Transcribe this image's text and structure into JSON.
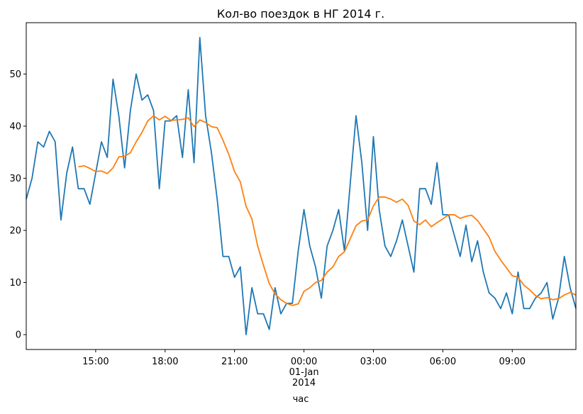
{
  "chart_data": {
    "type": "line",
    "title": "Кол-во поездок в НГ 2014 г.",
    "x_label": "час",
    "x": [
      "12:00",
      "12:15",
      "12:30",
      "12:45",
      "13:00",
      "13:15",
      "13:30",
      "13:45",
      "14:00",
      "14:15",
      "14:30",
      "14:45",
      "15:00",
      "15:15",
      "15:30",
      "15:45",
      "16:00",
      "16:15",
      "16:30",
      "16:45",
      "17:00",
      "17:15",
      "17:30",
      "17:45",
      "18:00",
      "18:15",
      "18:30",
      "18:45",
      "19:00",
      "19:15",
      "19:30",
      "19:45",
      "20:00",
      "20:15",
      "20:30",
      "20:45",
      "21:00",
      "21:15",
      "21:30",
      "21:45",
      "22:00",
      "22:15",
      "22:30",
      "22:45",
      "23:00",
      "23:15",
      "23:30",
      "23:45",
      "00:00",
      "00:15",
      "00:30",
      "00:45",
      "01:00",
      "01:15",
      "01:30",
      "01:45",
      "02:00",
      "02:15",
      "02:30",
      "02:45",
      "03:00",
      "03:15",
      "03:30",
      "03:45",
      "04:00",
      "04:15",
      "04:30",
      "04:45",
      "05:00",
      "05:15",
      "05:30",
      "05:45",
      "06:00",
      "06:15",
      "06:30",
      "06:45",
      "07:00",
      "07:15",
      "07:30",
      "07:45",
      "08:00",
      "08:15",
      "08:30",
      "08:45",
      "09:00",
      "09:15",
      "09:30",
      "09:45",
      "10:00",
      "10:15",
      "10:30",
      "10:45",
      "11:00",
      "11:15",
      "11:30",
      "11:45"
    ],
    "series": [
      {
        "color": "#1f77b4",
        "values": [
          26,
          30,
          37,
          36,
          39,
          37,
          22,
          31,
          36,
          28,
          28,
          25,
          31,
          37,
          34,
          49,
          42,
          32,
          43,
          50,
          45,
          46,
          43,
          28,
          41,
          41,
          42,
          34,
          47,
          33,
          57,
          42,
          35,
          26,
          15,
          15,
          11,
          13,
          0,
          9,
          4,
          4,
          1,
          9,
          4,
          6,
          6,
          16,
          24,
          17,
          13,
          7,
          17,
          20,
          24,
          16,
          29,
          42,
          33,
          20,
          38,
          24,
          17,
          15,
          18,
          22,
          17,
          12,
          28,
          28,
          25,
          33,
          23,
          23,
          19,
          15,
          21,
          14,
          18,
          12,
          8,
          7,
          5,
          8,
          4,
          12,
          5,
          5,
          7,
          8,
          10,
          3,
          7,
          15,
          9,
          5
        ]
      },
      {
        "color": "#ff7f0e",
        "values": [
          null,
          null,
          null,
          null,
          null,
          null,
          null,
          null,
          null,
          32.2,
          32.4,
          31.9,
          31.3,
          31.4,
          30.9,
          32,
          34.1,
          34.2,
          34.9,
          37,
          38.8,
          41,
          42,
          41.2,
          41.9,
          41.1,
          41.2,
          41.3,
          41.6,
          39.9,
          41.2,
          40.7,
          39.9,
          39.7,
          37.3,
          34.6,
          31.3,
          29.3,
          24.6,
          22.2,
          17,
          13.3,
          9.8,
          7.8,
          6.7,
          6,
          5.6,
          5.9,
          8.3,
          9,
          10,
          10.4,
          12,
          13,
          15,
          15.9,
          18.4,
          20.9,
          21.8,
          22,
          24.7,
          26.4,
          26.4,
          26,
          25.4,
          26,
          24.8,
          21.8,
          21.1,
          22,
          20.7,
          21.5,
          22.2,
          23,
          23,
          22.3,
          22.7,
          22.9,
          21.9,
          20.3,
          18.7,
          16,
          14.3,
          12.8,
          11.3,
          11,
          9.5,
          8.6,
          7.5,
          6.9,
          7.1,
          6.7,
          6.9,
          7.6,
          8.1,
          7.6
        ]
      }
    ],
    "xlim": [
      "12:00",
      "11:45"
    ],
    "xticks": [
      "15:00",
      "18:00",
      "21:00",
      {
        "value": "00:00",
        "label": "00:00\n01-Jan\n2014"
      },
      "03:00",
      "06:00",
      "09:00"
    ],
    "ylim": [
      -2.85,
      59.85
    ],
    "yticks": [
      0,
      10,
      20,
      30,
      40,
      50
    ],
    "grid": false
  }
}
